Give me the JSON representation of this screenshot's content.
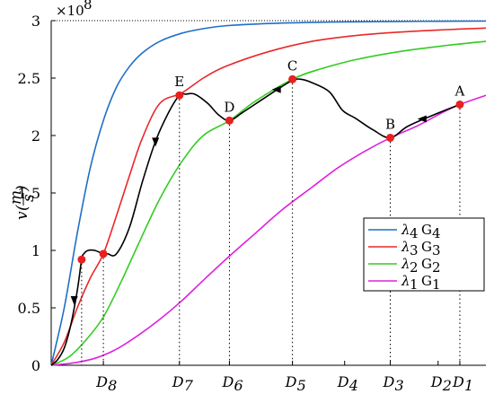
{
  "chart_data": {
    "type": "line",
    "ylabel": "v(m/s)",
    "ylabel_parts": {
      "v": "v",
      "open": "(",
      "num": "m",
      "den": "s",
      "close": ")"
    },
    "y_multiplier": "×10",
    "y_multiplier_exp": "8",
    "ylim": [
      0,
      3
    ],
    "y_ticks": [
      0,
      0.5,
      1,
      1.5,
      2,
      2.5,
      3
    ],
    "y_tick_labels": [
      "0",
      "0.5",
      "1",
      "1.5",
      "2",
      "2.5",
      "3"
    ],
    "x_ticks": [
      {
        "label": "D",
        "sub": "8",
        "x": 0.12
      },
      {
        "label": "D",
        "sub": "7",
        "x": 0.295
      },
      {
        "label": "D",
        "sub": "6",
        "x": 0.41
      },
      {
        "label": "D",
        "sub": "5",
        "x": 0.555
      },
      {
        "label": "D",
        "sub": "4",
        "x": 0.675
      },
      {
        "label": "D",
        "sub": "3",
        "x": 0.78
      },
      {
        "label": "D",
        "sub": "2",
        "x": 0.89
      },
      {
        "label": "D",
        "sub": "1",
        "x": 0.94
      }
    ],
    "xlim": [
      0,
      1
    ],
    "grid": false,
    "legend_position": "lower-right",
    "series": [
      {
        "name": "λ4 G4",
        "label": "λ",
        "sub": "4",
        "g": "G",
        "gsub": "4",
        "color": "#1f6fc8",
        "x": [
          0,
          0.03,
          0.06,
          0.09,
          0.12,
          0.15,
          0.18,
          0.21,
          0.25,
          0.3,
          0.35,
          0.4,
          0.5,
          0.6,
          0.7,
          0.8,
          0.9,
          1.0
        ],
        "y": [
          0,
          0.5,
          1.15,
          1.72,
          2.13,
          2.42,
          2.6,
          2.72,
          2.82,
          2.89,
          2.93,
          2.955,
          2.975,
          2.985,
          2.99,
          2.993,
          2.995,
          2.996
        ]
      },
      {
        "name": "λ3 G3",
        "label": "λ",
        "sub": "3",
        "g": "G",
        "gsub": "3",
        "color": "#e8282a",
        "x": [
          0,
          0.03,
          0.06,
          0.09,
          0.12,
          0.15,
          0.18,
          0.21,
          0.25,
          0.3,
          0.35,
          0.4,
          0.5,
          0.6,
          0.7,
          0.8,
          0.9,
          1.0
        ],
        "y": [
          0,
          0.2,
          0.5,
          0.76,
          0.97,
          1.3,
          1.65,
          1.98,
          2.28,
          2.37,
          2.5,
          2.6,
          2.73,
          2.82,
          2.87,
          2.9,
          2.92,
          2.935
        ]
      },
      {
        "name": "λ2 G2",
        "label": "λ",
        "sub": "2",
        "g": "G",
        "gsub": "2",
        "color": "#33cc22",
        "x": [
          0,
          0.04,
          0.08,
          0.12,
          0.16,
          0.2,
          0.25,
          0.3,
          0.35,
          0.41,
          0.47,
          0.555,
          0.62,
          0.7,
          0.8,
          0.9,
          1.0
        ],
        "y": [
          0,
          0.07,
          0.22,
          0.42,
          0.72,
          1.05,
          1.45,
          1.77,
          2.0,
          2.13,
          2.3,
          2.49,
          2.58,
          2.66,
          2.73,
          2.78,
          2.82
        ]
      },
      {
        "name": "λ1 G1",
        "label": "λ",
        "sub": "1",
        "g": "G",
        "gsub": "1",
        "color": "#dd22dd",
        "x": [
          0,
          0.05,
          0.1,
          0.15,
          0.2,
          0.25,
          0.3,
          0.35,
          0.41,
          0.47,
          0.53,
          0.6,
          0.66,
          0.72,
          0.78,
          0.84,
          0.9,
          0.94,
          1.0
        ],
        "y": [
          0,
          0.02,
          0.06,
          0.14,
          0.26,
          0.4,
          0.56,
          0.74,
          0.95,
          1.15,
          1.35,
          1.55,
          1.72,
          1.86,
          1.98,
          2.08,
          2.2,
          2.27,
          2.35
        ]
      }
    ],
    "path": {
      "color": "#000000",
      "x": [
        0.94,
        0.88,
        0.82,
        0.78,
        0.74,
        0.7,
        0.67,
        0.64,
        0.6,
        0.575,
        0.555,
        0.52,
        0.48,
        0.44,
        0.41,
        0.385,
        0.36,
        0.33,
        0.31,
        0.295,
        0.27,
        0.24,
        0.21,
        0.18,
        0.15,
        0.13,
        0.12,
        0.1,
        0.085,
        0.075,
        0.07,
        0.06,
        0.045,
        0.03,
        0.015,
        0
      ],
      "y": [
        2.27,
        2.18,
        2.08,
        1.98,
        2.05,
        2.15,
        2.22,
        2.38,
        2.46,
        2.49,
        2.48,
        2.4,
        2.3,
        2.2,
        2.13,
        2.18,
        2.28,
        2.36,
        2.36,
        2.35,
        2.2,
        1.95,
        1.6,
        1.2,
        0.97,
        0.97,
        0.97,
        1.0,
        1.0,
        0.97,
        0.92,
        0.65,
        0.35,
        0.15,
        0.05,
        0
      ],
      "arrows": [
        {
          "x": 0.855,
          "y": 2.145,
          "dir": "left"
        },
        {
          "x": 0.52,
          "y": 2.4,
          "dir": "left"
        },
        {
          "x": 0.24,
          "y": 1.95,
          "dir": "down"
        },
        {
          "x": 0.053,
          "y": 0.57,
          "dir": "down"
        }
      ]
    },
    "points": [
      {
        "label": "A",
        "x": 0.94,
        "y": 2.27
      },
      {
        "label": "B",
        "x": 0.78,
        "y": 1.98
      },
      {
        "label": "C",
        "x": 0.555,
        "y": 2.49
      },
      {
        "label": "D",
        "x": 0.41,
        "y": 2.13
      },
      {
        "label": "E",
        "x": 0.295,
        "y": 2.35
      },
      {
        "label": "",
        "x": 0.12,
        "y": 0.97
      },
      {
        "label": "",
        "x": 0.07,
        "y": 0.92
      }
    ],
    "point_color": "#e82020"
  }
}
